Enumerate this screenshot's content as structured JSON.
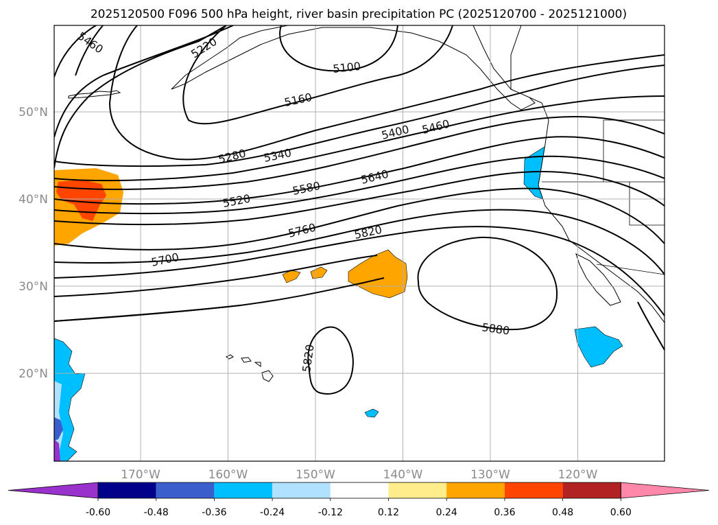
{
  "map": {
    "title": "2025120500 F096 500 hPa height, river basin precipitation PC (2025120700 - 2025121000)",
    "lat_labels": [
      {
        "lat": 50,
        "text": "50°N"
      },
      {
        "lat": 40,
        "text": "40°N"
      },
      {
        "lat": 30,
        "text": "30°N"
      },
      {
        "lat": 20,
        "text": "20°N"
      }
    ],
    "lon_labels": [
      {
        "lon": -170,
        "text": "170°W"
      },
      {
        "lon": -160,
        "text": "160°W"
      },
      {
        "lon": -150,
        "text": "150°W"
      },
      {
        "lon": -140,
        "text": "140°W"
      },
      {
        "lon": -130,
        "text": "130°W"
      },
      {
        "lon": -120,
        "text": "120°W"
      }
    ],
    "contour_labels": [
      "5460",
      "5220",
      "5100",
      "5160",
      "5280",
      "5340",
      "5400",
      "5460",
      "5520",
      "5580",
      "5640",
      "5700",
      "5760",
      "5820",
      "5880",
      "5820"
    ],
    "colorbar": {
      "bins": [
        "#9932cc",
        "#00008b",
        "#3a5fcd",
        "#00bfff",
        "#b0e2ff",
        "#ffffff",
        "#ffec8b",
        "#ffa500",
        "#ff4500",
        "#b22222",
        "#ff88aa"
      ],
      "labels": [
        "-0.60",
        "-0.48",
        "-0.36",
        "-0.24",
        "-0.12",
        "0.12",
        "0.24",
        "0.36",
        "0.48",
        "0.60"
      ]
    }
  }
}
